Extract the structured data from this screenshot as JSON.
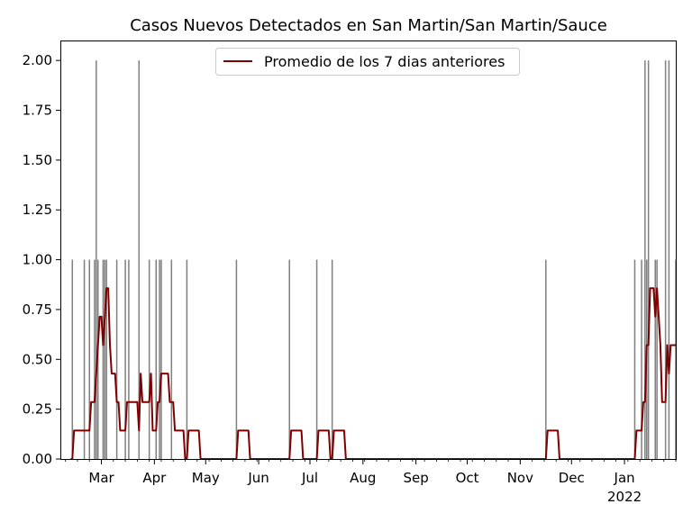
{
  "chart_data": {
    "type": "bar",
    "title": "Casos Nuevos Detectados en San Martin/San Martin/Sauce",
    "xlabel": "",
    "ylabel": "",
    "x_range": [
      "2021-02-05",
      "2022-01-31"
    ],
    "ylim": [
      0,
      2.1
    ],
    "y_ticks": [
      0.0,
      0.25,
      0.5,
      0.75,
      1.0,
      1.25,
      1.5,
      1.75,
      2.0
    ],
    "x_ticks": [
      {
        "date": "2021-03-01",
        "label": "Mar"
      },
      {
        "date": "2021-04-01",
        "label": "Apr"
      },
      {
        "date": "2021-05-01",
        "label": "May"
      },
      {
        "date": "2021-06-01",
        "label": "Jun"
      },
      {
        "date": "2021-07-01",
        "label": "Jul"
      },
      {
        "date": "2021-08-01",
        "label": "Aug"
      },
      {
        "date": "2021-09-01",
        "label": "Sep"
      },
      {
        "date": "2021-10-01",
        "label": "Oct"
      },
      {
        "date": "2021-11-01",
        "label": "Nov"
      },
      {
        "date": "2021-12-01",
        "label": "Dec"
      },
      {
        "date": "2022-01-01",
        "label": "Jan",
        "sublabel": "2022"
      }
    ],
    "grid": false,
    "legend_position": "top-center",
    "bar_color": "#808080",
    "line_color": "#800000",
    "bars": [
      {
        "date": "2021-02-12",
        "value": 1
      },
      {
        "date": "2021-02-19",
        "value": 1
      },
      {
        "date": "2021-02-22",
        "value": 1
      },
      {
        "date": "2021-02-25",
        "value": 1
      },
      {
        "date": "2021-02-26",
        "value": 2
      },
      {
        "date": "2021-02-27",
        "value": 1
      },
      {
        "date": "2021-03-02",
        "value": 1
      },
      {
        "date": "2021-03-03",
        "value": 1
      },
      {
        "date": "2021-03-04",
        "value": 1
      },
      {
        "date": "2021-03-10",
        "value": 1
      },
      {
        "date": "2021-03-15",
        "value": 1
      },
      {
        "date": "2021-03-17",
        "value": 1
      },
      {
        "date": "2021-03-23",
        "value": 2
      },
      {
        "date": "2021-03-29",
        "value": 1
      },
      {
        "date": "2021-04-02",
        "value": 1
      },
      {
        "date": "2021-04-04",
        "value": 1
      },
      {
        "date": "2021-04-05",
        "value": 1
      },
      {
        "date": "2021-04-11",
        "value": 1
      },
      {
        "date": "2021-04-20",
        "value": 1
      },
      {
        "date": "2021-05-19",
        "value": 1
      },
      {
        "date": "2021-06-19",
        "value": 1
      },
      {
        "date": "2021-07-05",
        "value": 1
      },
      {
        "date": "2021-07-14",
        "value": 1
      },
      {
        "date": "2021-11-16",
        "value": 1
      },
      {
        "date": "2022-01-07",
        "value": 1
      },
      {
        "date": "2022-01-11",
        "value": 1
      },
      {
        "date": "2022-01-13",
        "value": 2
      },
      {
        "date": "2022-01-14",
        "value": 1
      },
      {
        "date": "2022-01-15",
        "value": 2
      },
      {
        "date": "2022-01-19",
        "value": 1
      },
      {
        "date": "2022-01-20",
        "value": 1
      },
      {
        "date": "2022-01-25",
        "value": 2
      },
      {
        "date": "2022-01-27",
        "value": 2
      },
      {
        "date": "2022-01-31",
        "value": 1
      }
    ],
    "series": [
      {
        "name": "Promedio de los 7 dias anteriores",
        "window_days": 7,
        "x_start": "2021-02-11",
        "x_end": "2022-01-31"
      }
    ],
    "legend": [
      "Promedio de los 7 dias anteriores"
    ]
  }
}
